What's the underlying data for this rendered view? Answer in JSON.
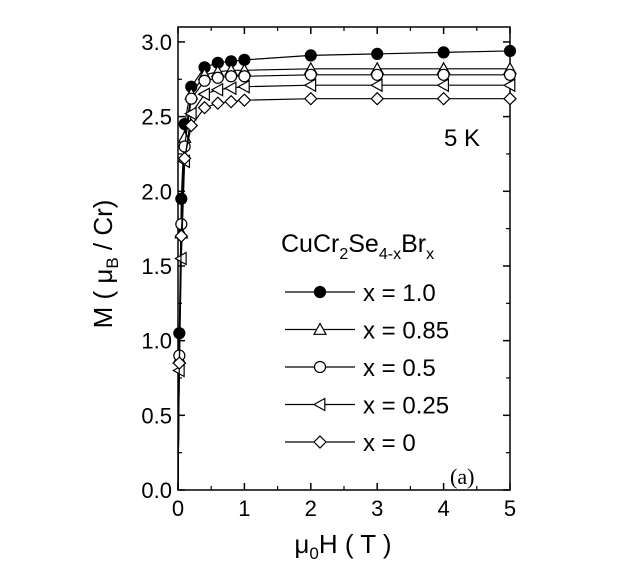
{
  "chart_data": {
    "type": "line",
    "xlabel": {
      "main": "μ",
      "sub": "0",
      "rest": "H ( T )"
    },
    "ylabel": {
      "main": "M ( μ",
      "sub": "B",
      "rest": " / Cr)"
    },
    "xlim": [
      0,
      5
    ],
    "ylim": [
      0,
      3.1
    ],
    "xticks": [
      "0",
      "1",
      "2",
      "3",
      "4",
      "5"
    ],
    "yticks": [
      "0.0",
      "0.5",
      "1.0",
      "1.5",
      "2.0",
      "2.5",
      "3.0"
    ],
    "grid": false,
    "legend_placement": "center-right",
    "legend_title": {
      "p1": "CuCr",
      "s1": "2",
      "p2": "Se",
      "s2": "4-x",
      "p3": "Br",
      "s3": "x"
    },
    "annotation": "5 K",
    "panel_label": "(a)",
    "series": [
      {
        "name": "x = 1.0",
        "marker": "filled-circle",
        "x": [
          0,
          0.02,
          0.05,
          0.1,
          0.2,
          0.4,
          0.6,
          0.8,
          1.0,
          2,
          3,
          4,
          5
        ],
        "y": [
          0,
          1.05,
          1.95,
          2.45,
          2.7,
          2.83,
          2.86,
          2.87,
          2.88,
          2.91,
          2.92,
          2.93,
          2.94
        ]
      },
      {
        "name": "x = 0.85",
        "marker": "open-triangle-up",
        "x": [
          0,
          0.02,
          0.05,
          0.1,
          0.2,
          0.4,
          0.6,
          0.8,
          1.0,
          2,
          3,
          4,
          5
        ],
        "y": [
          0,
          0.88,
          1.72,
          2.36,
          2.65,
          2.78,
          2.8,
          2.81,
          2.81,
          2.82,
          2.82,
          2.82,
          2.82
        ]
      },
      {
        "name": "x = 0.5",
        "marker": "open-circle",
        "x": [
          0,
          0.02,
          0.05,
          0.1,
          0.2,
          0.4,
          0.6,
          0.8,
          1.0,
          2,
          3,
          4,
          5
        ],
        "y": [
          0,
          0.9,
          1.78,
          2.3,
          2.62,
          2.74,
          2.76,
          2.77,
          2.77,
          2.78,
          2.78,
          2.78,
          2.78
        ]
      },
      {
        "name": "x = 0.25",
        "marker": "open-triangle-left",
        "x": [
          0,
          0.02,
          0.05,
          0.1,
          0.2,
          0.4,
          0.6,
          0.8,
          1.0,
          2,
          3,
          4,
          5
        ],
        "y": [
          0,
          0.8,
          1.55,
          2.2,
          2.52,
          2.65,
          2.68,
          2.69,
          2.7,
          2.71,
          2.71,
          2.71,
          2.71
        ]
      },
      {
        "name": "x = 0",
        "marker": "open-diamond",
        "x": [
          0,
          0.02,
          0.05,
          0.1,
          0.2,
          0.4,
          0.6,
          0.8,
          1.0,
          2,
          3,
          4,
          5
        ],
        "y": [
          0,
          0.85,
          1.7,
          2.22,
          2.44,
          2.56,
          2.59,
          2.6,
          2.61,
          2.62,
          2.62,
          2.62,
          2.62
        ]
      }
    ]
  }
}
